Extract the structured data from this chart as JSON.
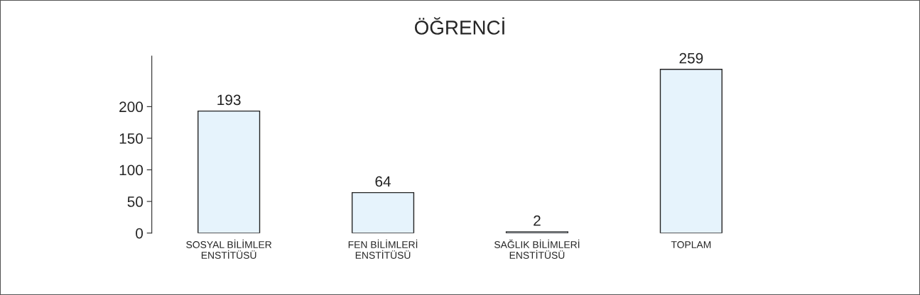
{
  "chart_data": {
    "type": "bar",
    "title": "ÖĞRENCİ",
    "categories": [
      "SOSYAL BİLİMLER\nENSTİTÜSÜ",
      "FEN BİLİMLERİ\nENSTİTÜSÜ",
      "SAĞLIK BİLİMLERİ\nENSTİTÜSÜ",
      "TOPLAM"
    ],
    "values": [
      193,
      64,
      2,
      259
    ],
    "color": "#e6f3fc",
    "ylim": [
      0,
      280
    ],
    "yticks": [
      0,
      50,
      100,
      150,
      200
    ],
    "data_labels": true,
    "grid": false
  }
}
